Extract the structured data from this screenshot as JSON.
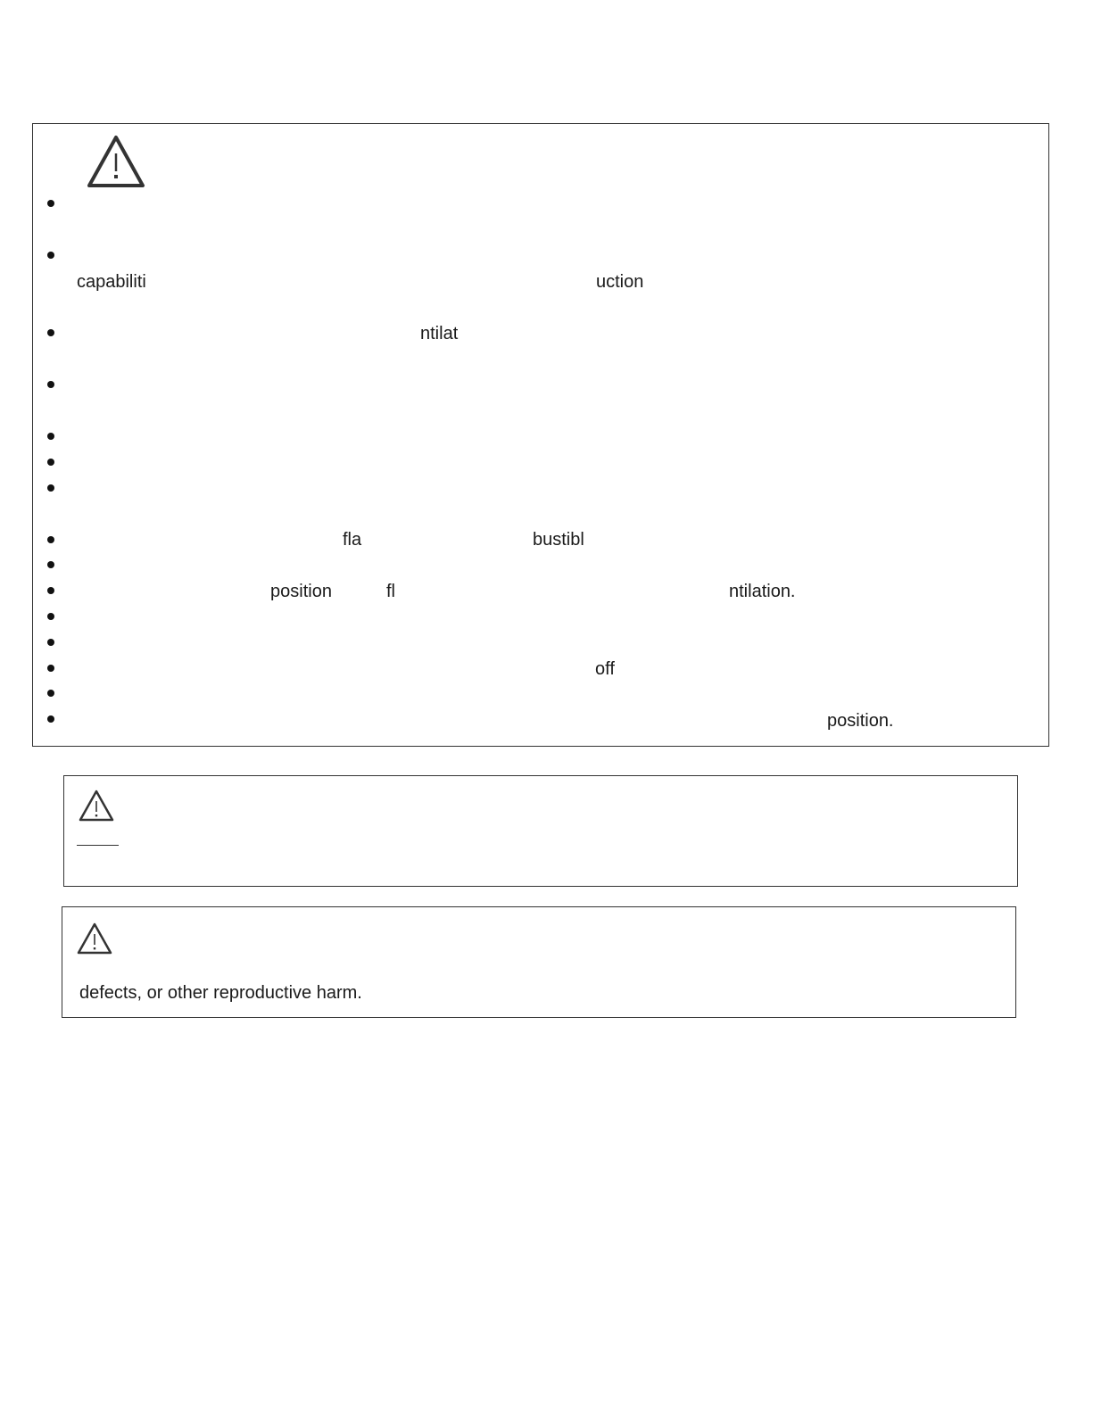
{
  "main_warning": {
    "icon": "warning-triangle-icon",
    "bullet_count": 15,
    "fragments": {
      "capabiliti": "capabiliti",
      "uction": "uction",
      "ntilat": "ntilat",
      "fla": "fla",
      "bustibl": "bustibl",
      "position": "position",
      "fl": "fl",
      "ntilation": "ntilation.",
      "off": "off",
      "position_end": "position."
    }
  },
  "second_warning": {
    "icon": "warning-triangle-icon"
  },
  "prop65_warning": {
    "icon": "warning-triangle-icon",
    "text": "defects, or other reproductive harm."
  }
}
